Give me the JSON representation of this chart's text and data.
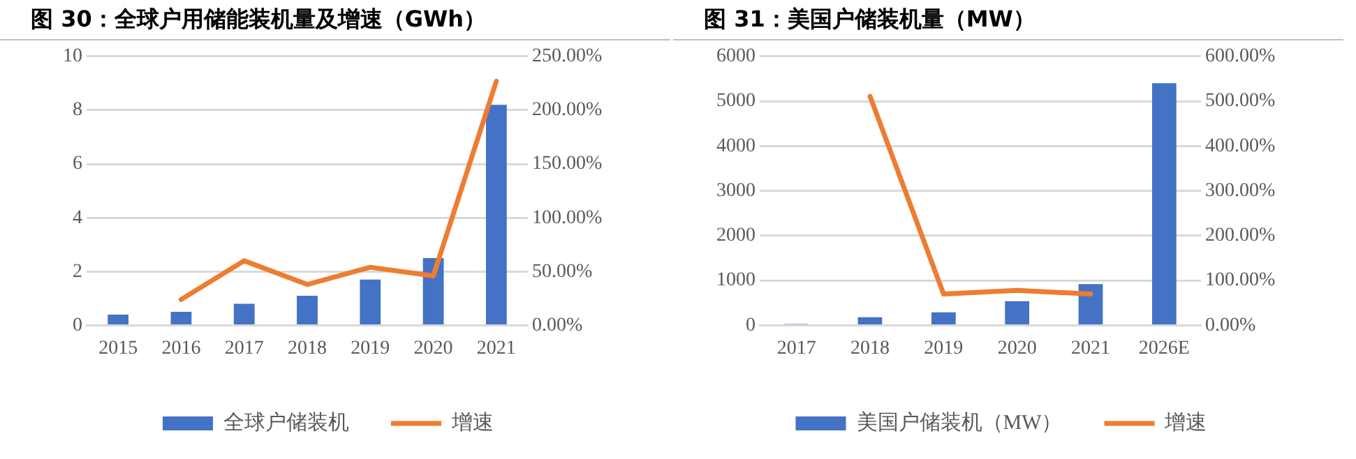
{
  "chart_data": [
    {
      "type": "bar",
      "title": "图 30：全球户用储能装机量及增速（GWh）",
      "categories": [
        "2015",
        "2016",
        "2017",
        "2018",
        "2019",
        "2020",
        "2021"
      ],
      "series": [
        {
          "name": "全球户储装机",
          "color": "#4472c4",
          "values": [
            0.4,
            0.5,
            0.8,
            1.1,
            1.7,
            2.5,
            8.2
          ]
        },
        {
          "name": "增速",
          "type": "line",
          "axis": "y2",
          "color": "#ed7d31",
          "values": [
            null,
            24,
            60,
            38,
            54,
            46,
            227
          ]
        }
      ],
      "ylim": [
        0,
        10
      ],
      "yticks": [
        0,
        2,
        4,
        6,
        8,
        10
      ],
      "y2lim": [
        0,
        250
      ],
      "y2ticks": [
        {
          "value": 0,
          "label": "0.00%"
        },
        {
          "value": 50,
          "label": "50.00%"
        },
        {
          "value": 100,
          "label": "100.00%"
        },
        {
          "value": 150,
          "label": "150.00%"
        },
        {
          "value": 200,
          "label": "200.00%"
        },
        {
          "value": 250,
          "label": "250.00%"
        }
      ],
      "grid": "y",
      "legend": "bottom",
      "marker": "none"
    },
    {
      "type": "bar",
      "title": "图 31：美国户储装机量（MW）",
      "categories": [
        "2017",
        "2018",
        "2019",
        "2020",
        "2021",
        "2026E"
      ],
      "series": [
        {
          "name": "美国户储装机（MW）",
          "color": "#4472c4",
          "values": [
            30,
            180,
            290,
            540,
            920,
            5400
          ]
        },
        {
          "name": "增速",
          "type": "line",
          "axis": "y2",
          "color": "#ed7d31",
          "values": [
            null,
            511,
            70,
            78,
            70,
            null
          ]
        }
      ],
      "ylim": [
        0,
        6000
      ],
      "yticks": [
        0,
        1000,
        2000,
        3000,
        4000,
        5000,
        6000
      ],
      "y2lim": [
        0,
        600
      ],
      "y2ticks": [
        {
          "value": 0,
          "label": "0.00%"
        },
        {
          "value": 100,
          "label": "100.00%"
        },
        {
          "value": 200,
          "label": "200.00%"
        },
        {
          "value": 300,
          "label": "300.00%"
        },
        {
          "value": 400,
          "label": "400.00%"
        },
        {
          "value": 500,
          "label": "500.00%"
        },
        {
          "value": 600,
          "label": "600.00%"
        }
      ],
      "grid": "y",
      "legend": "bottom",
      "marker": "none"
    }
  ]
}
